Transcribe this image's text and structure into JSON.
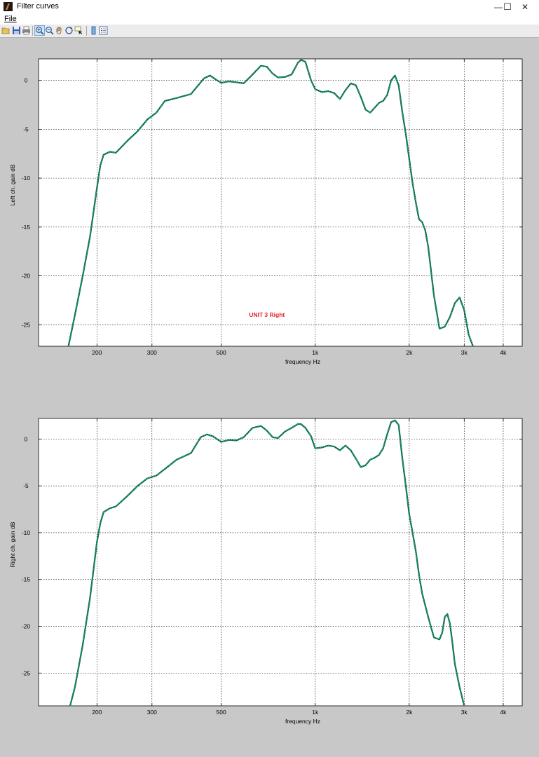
{
  "window": {
    "title": "Filter curves",
    "minimize_glyph": "—",
    "maximize_glyph": "☐",
    "close_glyph": "✕"
  },
  "menu": {
    "file_label": "File"
  },
  "toolbar": {
    "buttons": [
      "open-icon",
      "save-icon",
      "print-icon",
      "zoom-in-icon",
      "zoom-out-icon",
      "pan-icon",
      "rotate-icon",
      "data-cursor-icon",
      "colorbar-icon",
      "legend-icon"
    ]
  },
  "colors": {
    "figure_bg": "#c8c8c8",
    "axes_bg": "#ffffff",
    "curve_dark": "#0b5a66",
    "curve_green": "#22dd22",
    "annotation": "#e4232b"
  },
  "chart_data": [
    {
      "type": "line",
      "xscale": "log",
      "xlabel": "frequency   Hz",
      "ylabel": "Left ch. gain dB",
      "xlim": [
        130,
        4600
      ],
      "ylim": [
        -27.2,
        2.2
      ],
      "xticks": [
        200,
        300,
        500,
        1000,
        2000,
        3000,
        4000
      ],
      "xticklabels": [
        "200",
        "300",
        "500",
        "1k",
        "2k",
        "3k",
        "4k"
      ],
      "yticks": [
        0,
        -5,
        -10,
        -15,
        -20,
        -25
      ],
      "yticklabels": [
        "0",
        "-5",
        "-10",
        "-15",
        "-20",
        "-25"
      ],
      "grid": true,
      "annotation": {
        "text": "UNIT 3 Right",
        "x": 700,
        "y": -24.2
      },
      "series": [
        {
          "color": "#22dd22",
          "x": [
            162,
            170,
            180,
            190,
            200,
            205,
            210,
            220,
            230,
            250,
            270,
            290,
            310,
            330,
            360,
            400,
            440,
            460,
            480,
            500,
            530,
            560,
            590,
            630,
            670,
            700,
            730,
            760,
            800,
            840,
            880,
            900,
            930,
            970,
            1000,
            1050,
            1100,
            1150,
            1200,
            1250,
            1300,
            1350,
            1400,
            1450,
            1500,
            1550,
            1600,
            1650,
            1700,
            1750,
            1800,
            1850,
            1900,
            1950,
            2000,
            2050,
            2100,
            2150,
            2200,
            2250,
            2300,
            2400,
            2500,
            2600,
            2700,
            2800,
            2900,
            3000,
            3100,
            3200
          ],
          "y": [
            -27.2,
            -24,
            -20,
            -16,
            -11,
            -8.7,
            -7.6,
            -7.3,
            -7.4,
            -6.2,
            -5.2,
            -4,
            -3.3,
            -2.1,
            -1.8,
            -1.4,
            0.2,
            0.5,
            0.1,
            -0.25,
            -0.1,
            -0.2,
            -0.3,
            0.6,
            1.5,
            1.4,
            0.7,
            0.3,
            0.35,
            0.6,
            1.8,
            2.1,
            1.9,
            0,
            -0.9,
            -1.2,
            -1.1,
            -1.3,
            -1.9,
            -1,
            -0.3,
            -0.5,
            -1.7,
            -3,
            -3.3,
            -2.8,
            -2.3,
            -2.1,
            -1.5,
            0,
            0.5,
            -0.5,
            -3.2,
            -5.5,
            -8,
            -10.5,
            -12.5,
            -14.2,
            -14.5,
            -15.3,
            -17,
            -22,
            -25.4,
            -25.2,
            -24.2,
            -22.8,
            -22.2,
            -23.5,
            -26,
            -27.2
          ]
        }
      ]
    },
    {
      "type": "line",
      "xscale": "log",
      "xlabel": "frequency   Hz",
      "ylabel": "Right ch. gain dB",
      "xlim": [
        130,
        4600
      ],
      "ylim": [
        -28.5,
        2.2
      ],
      "xticks": [
        200,
        300,
        500,
        1000,
        2000,
        3000,
        4000
      ],
      "xticklabels": [
        "200",
        "300",
        "500",
        "1k",
        "2k",
        "3k",
        "4k"
      ],
      "yticks": [
        0,
        -5,
        -10,
        -15,
        -20,
        -25
      ],
      "yticklabels": [
        "0",
        "-5",
        "-10",
        "-15",
        "-20",
        "-25"
      ],
      "grid": true,
      "series": [
        {
          "color": "#22dd22",
          "x": [
            164,
            170,
            180,
            190,
            200,
            205,
            210,
            220,
            230,
            250,
            270,
            290,
            310,
            330,
            360,
            400,
            430,
            450,
            470,
            500,
            530,
            560,
            590,
            630,
            670,
            700,
            730,
            760,
            800,
            840,
            880,
            900,
            930,
            970,
            1000,
            1050,
            1100,
            1150,
            1200,
            1250,
            1300,
            1350,
            1400,
            1450,
            1500,
            1550,
            1600,
            1650,
            1700,
            1750,
            1800,
            1850,
            1900,
            1950,
            2000,
            2050,
            2100,
            2150,
            2200,
            2300,
            2400,
            2500,
            2550,
            2600,
            2650,
            2700,
            2750,
            2800,
            2900,
            3000
          ],
          "y": [
            -28.5,
            -26.5,
            -22,
            -17,
            -11,
            -9,
            -7.8,
            -7.4,
            -7.2,
            -6.1,
            -5,
            -4.2,
            -3.9,
            -3.2,
            -2.2,
            -1.5,
            0.2,
            0.5,
            0.3,
            -0.3,
            -0.1,
            -0.15,
            0.2,
            1.2,
            1.4,
            0.9,
            0.2,
            0.1,
            0.8,
            1.2,
            1.6,
            1.6,
            1.2,
            0.3,
            -1,
            -0.9,
            -0.7,
            -0.8,
            -1.2,
            -0.7,
            -1.2,
            -2.1,
            -3,
            -2.8,
            -2.2,
            -2,
            -1.7,
            -1,
            0.5,
            1.8,
            2,
            1.5,
            -2,
            -5,
            -8,
            -10,
            -12,
            -14.5,
            -16.5,
            -19,
            -21.2,
            -21.4,
            -20.7,
            -19,
            -18.7,
            -19.7,
            -21.8,
            -24,
            -26.5,
            -28.5
          ]
        }
      ]
    }
  ]
}
